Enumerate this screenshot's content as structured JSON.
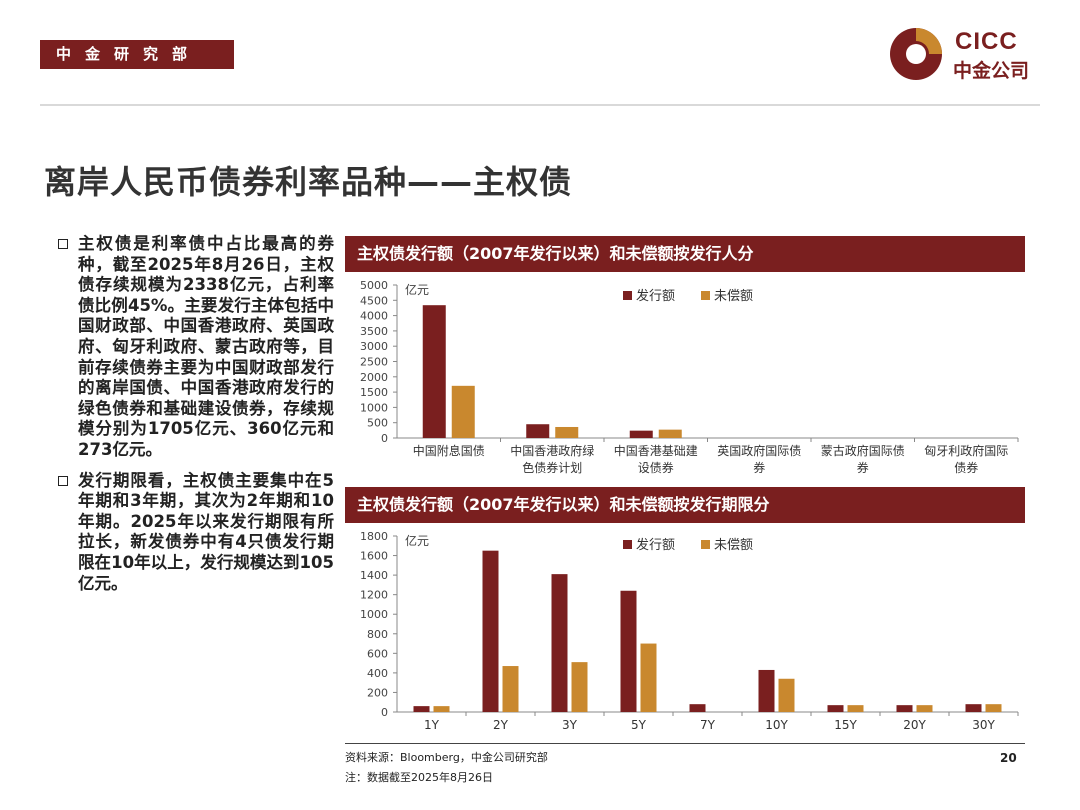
{
  "header": {
    "department": "中金研究部",
    "logo_text": "CICC",
    "logo_cn": "中金公司"
  },
  "title": "离岸人民币债券利率品种——主权债",
  "bullets": [
    "主权债是利率债中占比最高的券种，截至2025年8月26日，主权债存续规模为2338亿元，占利率债比例45%。主要发行主体包括中国财政部、中国香港政府、英国政府、匈牙利政府、蒙古政府等，目前存续债券主要为中国财政部发行的离岸国债、中国香港政府发行的绿色债券和基础建设债券，存续规模分别为1705亿元、360亿元和273亿元。",
    "发行期限看，主权债主要集中在5年期和3年期，其次为2年期和10年期。2025年以来发行期限有所拉长，新发债券中有4只债发行期限在10年以上，发行规模达到105亿元。"
  ],
  "colors": {
    "brand": "#7a1f1f",
    "issued": "#7a1f1f",
    "outstanding": "#c9882e"
  },
  "chart_data": [
    {
      "type": "bar",
      "title": "主权债发行额（2007年发行以来）和未偿额按发行人分",
      "ylabel": "亿元",
      "ylim": [
        0,
        5000
      ],
      "yticks": [
        0,
        500,
        1000,
        1500,
        2000,
        2500,
        3000,
        3500,
        4000,
        4500,
        5000
      ],
      "categories": [
        [
          "中国附息国债"
        ],
        [
          "中国香港政府绿",
          "色债券计划"
        ],
        [
          "中国香港基础建",
          "设债券"
        ],
        [
          "英国政府国际债",
          "券"
        ],
        [
          "蒙古政府国际债",
          "券"
        ],
        [
          "匈牙利政府国际",
          "债券"
        ]
      ],
      "series": [
        {
          "name": "发行额",
          "values": [
            4340,
            450,
            240,
            0,
            0,
            0
          ]
        },
        {
          "name": "未偿额",
          "values": [
            1705,
            360,
            273,
            0,
            0,
            0
          ]
        }
      ],
      "legend": "top-center"
    },
    {
      "type": "bar",
      "title": "主权债发行额（2007年发行以来）和未偿额按发行期限分",
      "ylabel": "亿元",
      "ylim": [
        0,
        1800
      ],
      "yticks": [
        0,
        200,
        400,
        600,
        800,
        1000,
        1200,
        1400,
        1600,
        1800
      ],
      "categories": [
        [
          "1Y"
        ],
        [
          "2Y"
        ],
        [
          "3Y"
        ],
        [
          "5Y"
        ],
        [
          "7Y"
        ],
        [
          "10Y"
        ],
        [
          "15Y"
        ],
        [
          "20Y"
        ],
        [
          "30Y"
        ]
      ],
      "series": [
        {
          "name": "发行额",
          "values": [
            60,
            1650,
            1410,
            1240,
            80,
            430,
            70,
            70,
            80
          ]
        },
        {
          "name": "未偿额",
          "values": [
            60,
            470,
            510,
            700,
            0,
            340,
            70,
            70,
            80
          ]
        }
      ],
      "legend": "top-center"
    }
  ],
  "footer": {
    "source": "资料来源：Bloomberg，中金公司研究部",
    "note": "注：数据截至2025年8月26日",
    "page": "20"
  }
}
